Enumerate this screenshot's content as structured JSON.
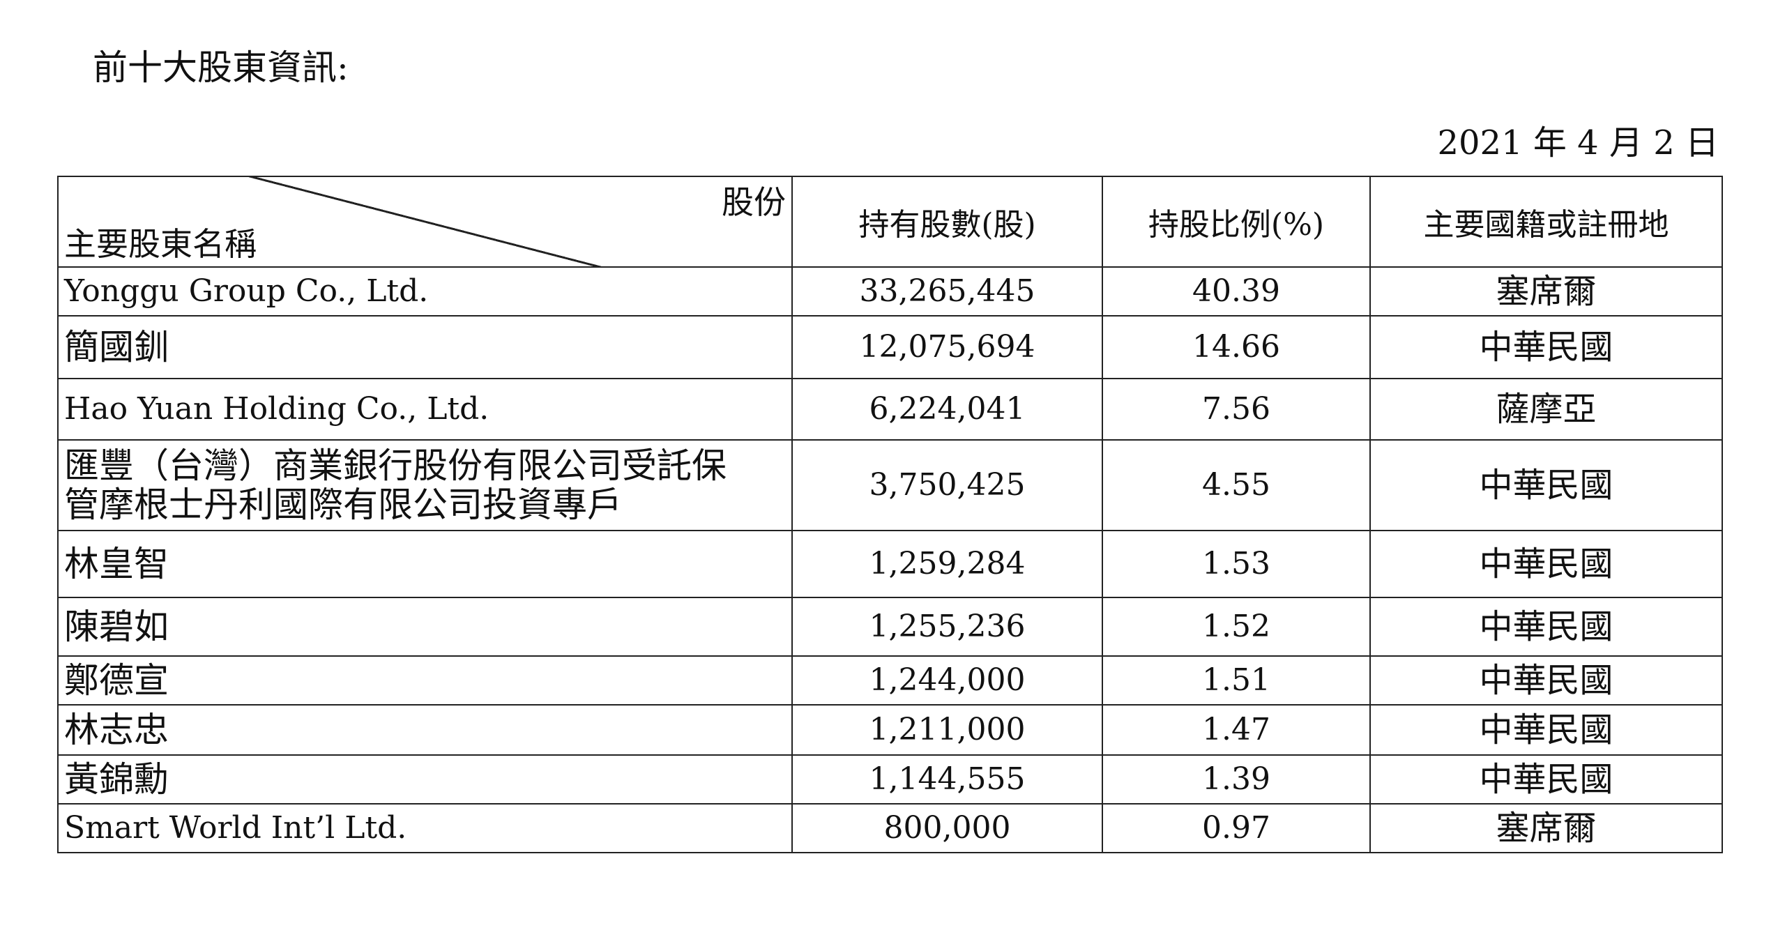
{
  "heading": "前十大股東資訊:",
  "date": "2021 年 4 月 2 日",
  "table": {
    "header": {
      "diag_top": "股份",
      "diag_bottom": "主要股東名稱",
      "shares": "持有股數(股)",
      "percent": "持股比例(%)",
      "nationality": "主要國籍或註冊地"
    },
    "rows": [
      {
        "name": "Yonggu Group Co., Ltd.",
        "shares": "33,265,445",
        "percent": "40.39",
        "country": "塞席爾"
      },
      {
        "name": "簡國釧",
        "shares": "12,075,694",
        "percent": "14.66",
        "country": "中華民國"
      },
      {
        "name": "Hao Yuan Holding Co., Ltd.",
        "shares": "6,224,041",
        "percent": "7.56",
        "country": "薩摩亞"
      },
      {
        "name_line1": "匯豐（台灣）商業銀行股份有限公司受託保",
        "name_line2": "管摩根士丹利國際有限公司投資專戶",
        "shares": "3,750,425",
        "percent": "4.55",
        "country": "中華民國"
      },
      {
        "name": "林皇智",
        "shares": "1,259,284",
        "percent": "1.53",
        "country": "中華民國"
      },
      {
        "name": "陳碧如",
        "shares": "1,255,236",
        "percent": "1.52",
        "country": "中華民國"
      },
      {
        "name": "鄭德宣",
        "shares": "1,244,000",
        "percent": "1.51",
        "country": "中華民國"
      },
      {
        "name": "林志忠",
        "shares": "1,211,000",
        "percent": "1.47",
        "country": "中華民國"
      },
      {
        "name": "黃錦勳",
        "shares": "1,144,555",
        "percent": "1.39",
        "country": "中華民國"
      },
      {
        "name": "Smart World Int’l Ltd.",
        "shares": "800,000",
        "percent": "0.97",
        "country": "塞席爾"
      }
    ]
  }
}
